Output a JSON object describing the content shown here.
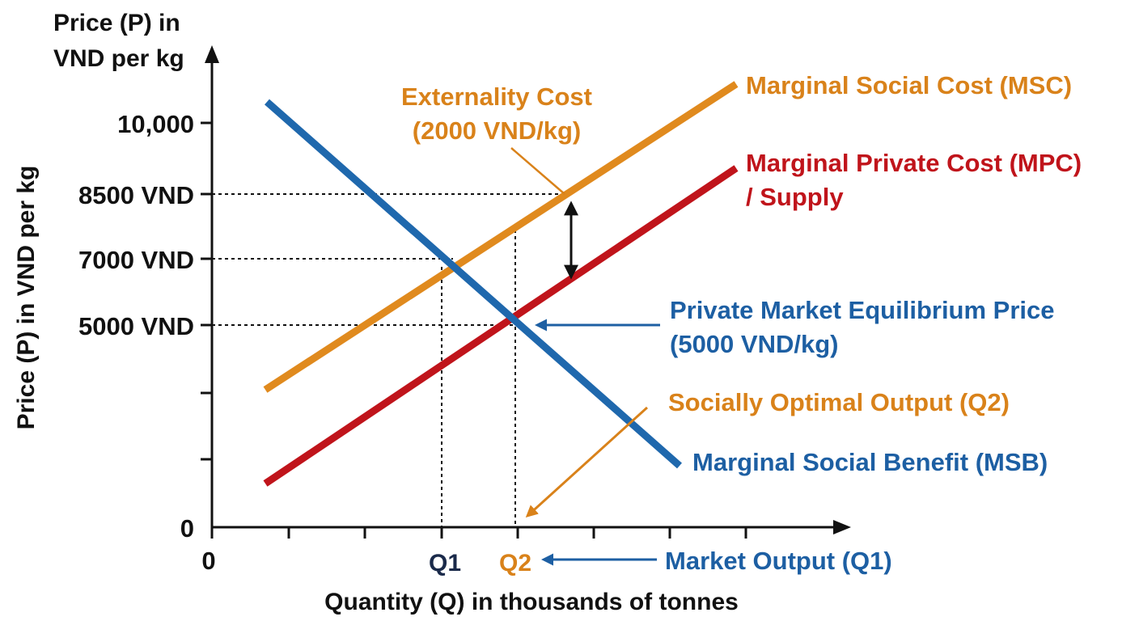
{
  "axes": {
    "y_title_top_line1": "Price (P) in",
    "y_title_top_line2": "VND per kg",
    "y_title_side": "Price (P) in VND per kg",
    "x_title": "Quantity (Q) in thousands of tonnes",
    "origin_x": "0",
    "origin_y": "0",
    "y_ticks": [
      "10,000",
      "8500 VND",
      "7000 VND",
      "5000 VND"
    ],
    "x_ticks": [
      "Q1",
      "Q2"
    ]
  },
  "curves": {
    "msc": {
      "label": "Marginal Social Cost (MSC)",
      "color": "#e08a1e"
    },
    "mpc": {
      "label_line1": "Marginal Private Cost (MPC)",
      "label_line2": "/ Supply",
      "color": "#c0141b"
    },
    "msb": {
      "label": "Marginal Social Benefit (MSB)",
      "color": "#1f68ad"
    }
  },
  "annotations": {
    "externality_line1": "Externality Cost",
    "externality_line2": "(2000 VND/kg)",
    "equilibrium_line1": "Private Market Equilibrium Price",
    "equilibrium_line2": "(5000 VND/kg)",
    "social_optimal": "Socially Optimal Output (Q2)",
    "market_output": "Market Output (Q1)"
  }
}
